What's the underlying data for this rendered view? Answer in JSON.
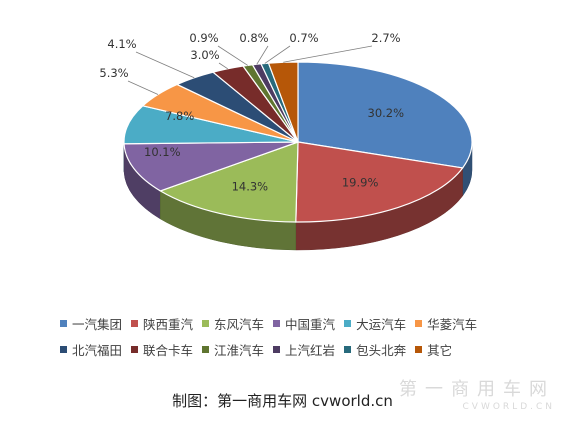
{
  "chart_data": {
    "type": "pie",
    "title": "",
    "categories": [
      "一汽集团",
      "陕西重汽",
      "东风汽车",
      "中国重汽",
      "大运汽车",
      "华菱汽车",
      "北汽福田",
      "联合卡车",
      "江淮汽车",
      "上汽红岩",
      "包头北奔",
      "其它"
    ],
    "values": [
      30.2,
      19.9,
      14.3,
      10.1,
      7.8,
      5.3,
      4.1,
      3.0,
      0.9,
      0.8,
      0.7,
      2.7
    ],
    "labels": [
      "30.2%",
      "19.9%",
      "14.3%",
      "10.1%",
      "7.8%",
      "5.3%",
      "4.1%",
      "3.0%",
      "0.9%",
      "0.8%",
      "0.7%",
      "2.7%"
    ],
    "colors": [
      "#4f81bd",
      "#c0504d",
      "#9bbb59",
      "#8064a2",
      "#4bacc6",
      "#f79646",
      "#2c4d75",
      "#772c2a",
      "#5f7530",
      "#4d3b62",
      "#276a7c",
      "#b65708"
    ],
    "style": "3d",
    "legend_position": "bottom"
  },
  "legend": {
    "rows": [
      [
        0,
        1,
        2,
        3,
        4,
        5
      ],
      [
        6,
        7,
        8,
        9,
        10,
        11
      ]
    ]
  },
  "footer": {
    "caption": "制图：第一商用车网",
    "site": "cvworld.cn"
  },
  "watermark": {
    "text": "第一商用车网",
    "sub": "CVWORLD.CN"
  }
}
